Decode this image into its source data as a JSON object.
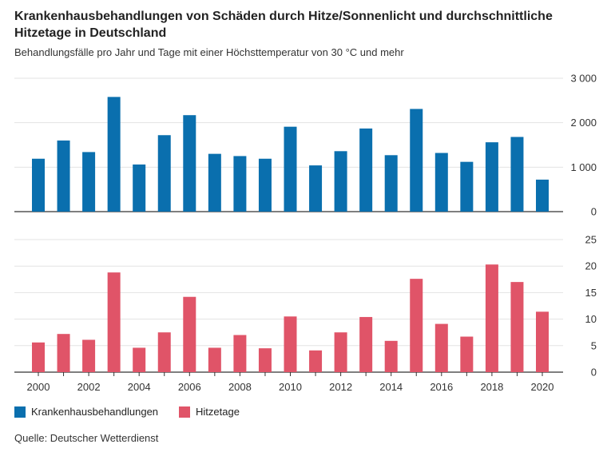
{
  "title": "Krankenhausbehandlungen von Schäden durch Hitze/Sonnenlicht und durchschnittliche Hitzetage in Deutschland",
  "subtitle": "Behandlungsfälle pro Jahr und Tage mit einer Höchsttemperatur von 30 °C und mehr",
  "source": "Quelle: Deutscher Wetterdienst",
  "colors": {
    "hospital": "#0a6fae",
    "heat": "#e05468"
  },
  "legend": {
    "hospital": "Krankenhausbehandlungen",
    "heat": "Hitzetage",
    "placement": "bottom-left"
  },
  "chart_data": [
    {
      "type": "bar",
      "x": [
        2000,
        2001,
        2002,
        2003,
        2004,
        2005,
        2006,
        2007,
        2008,
        2009,
        2010,
        2011,
        2012,
        2013,
        2014,
        2015,
        2016,
        2017,
        2018,
        2019,
        2020
      ],
      "series": [
        {
          "name": "Krankenhausbehandlungen",
          "values": [
            1190,
            1600,
            1340,
            2580,
            1060,
            1720,
            2170,
            1300,
            1250,
            1190,
            1910,
            1040,
            1360,
            1870,
            1270,
            2310,
            1320,
            1120,
            1560,
            1680,
            720
          ]
        }
      ],
      "ylim": [
        0,
        3000
      ],
      "yticks": [
        "0",
        "1 000",
        "2 000",
        "3 000"
      ],
      "yticks_values": [
        0,
        1000,
        2000,
        3000
      ],
      "grid": true
    },
    {
      "type": "bar",
      "x": [
        2000,
        2001,
        2002,
        2003,
        2004,
        2005,
        2006,
        2007,
        2008,
        2009,
        2010,
        2011,
        2012,
        2013,
        2014,
        2015,
        2016,
        2017,
        2018,
        2019,
        2020
      ],
      "series": [
        {
          "name": "Hitzetage",
          "values": [
            5.6,
            7.2,
            6.1,
            18.8,
            4.6,
            7.5,
            14.2,
            4.6,
            7.0,
            4.5,
            10.5,
            4.1,
            7.5,
            10.4,
            5.9,
            17.6,
            9.1,
            6.7,
            20.3,
            17.0,
            11.4
          ]
        }
      ],
      "ylim": [
        0,
        25
      ],
      "yticks": [
        "0",
        "5",
        "10",
        "15",
        "20",
        "25"
      ],
      "yticks_values": [
        0,
        5,
        10,
        15,
        20,
        25
      ],
      "xticks": [
        "2000",
        "2002",
        "2004",
        "2006",
        "2008",
        "2010",
        "2012",
        "2014",
        "2016",
        "2018",
        "2020"
      ],
      "grid": true
    }
  ]
}
